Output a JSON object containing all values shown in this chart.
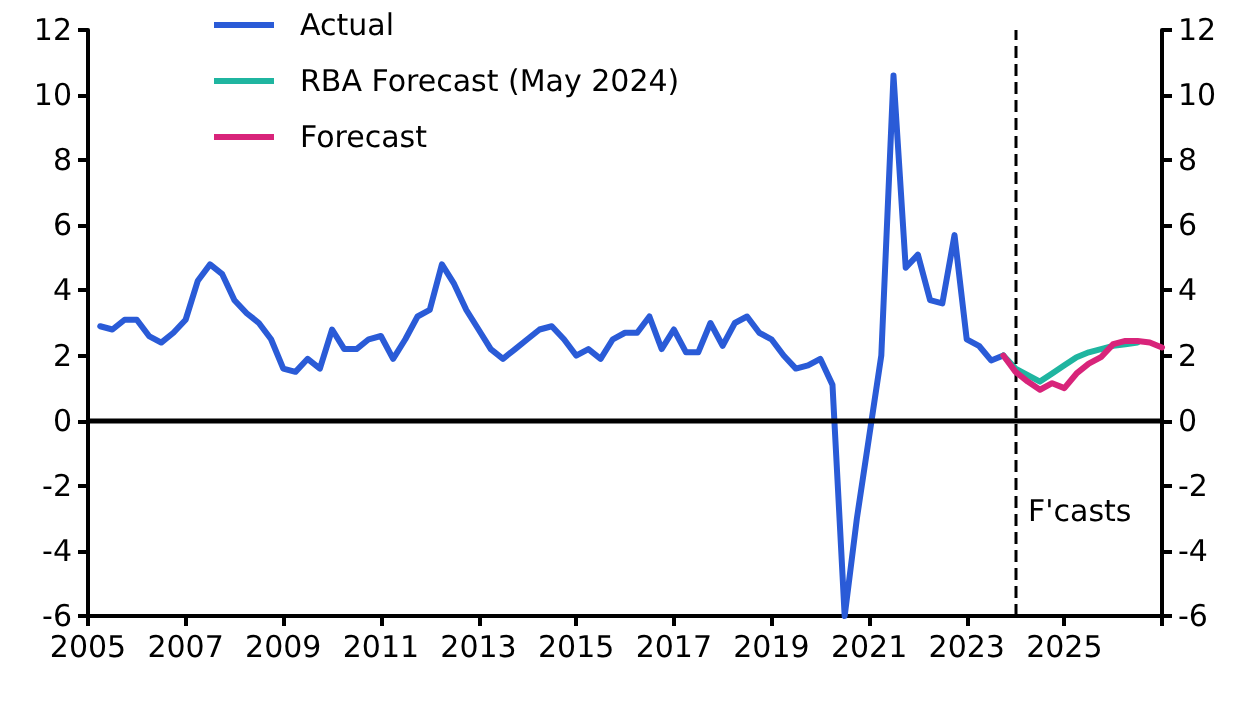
{
  "chart_data": {
    "type": "line",
    "xlim": [
      2005,
      2027
    ],
    "xticks": [
      2005,
      2007,
      2009,
      2011,
      2013,
      2015,
      2017,
      2019,
      2021,
      2023,
      2025,
      {
        "value": 2027,
        "label": null
      }
    ],
    "ylim": [
      -6,
      12
    ],
    "yticks": [
      -6,
      -4,
      -2,
      0,
      2,
      4,
      6,
      8,
      10,
      12
    ],
    "y2lim": [
      -6,
      12
    ],
    "y2ticks": [
      -6,
      -4,
      -2,
      0,
      2,
      4,
      6,
      8,
      10,
      12
    ],
    "grid": false,
    "legend": "top left",
    "marker": "none",
    "line_style": "solid",
    "series": [
      {
        "name": "Actual",
        "color": "#2a5bd7",
        "x": [
          2005.25,
          2005.5,
          2005.75,
          2006,
          2006.25,
          2006.5,
          2006.75,
          2007,
          2007.25,
          2007.5,
          2007.75,
          2008,
          2008.25,
          2008.5,
          2008.75,
          2009,
          2009.25,
          2009.5,
          2009.75,
          2010,
          2010.25,
          2010.5,
          2010.75,
          2011,
          2011.25,
          2011.5,
          2011.75,
          2012,
          2012.25,
          2012.5,
          2012.75,
          2013,
          2013.25,
          2013.5,
          2013.75,
          2014,
          2014.25,
          2014.5,
          2014.75,
          2015,
          2015.25,
          2015.5,
          2015.75,
          2016,
          2016.25,
          2016.5,
          2016.75,
          2017,
          2017.25,
          2017.5,
          2017.75,
          2018,
          2018.25,
          2018.5,
          2018.75,
          2019,
          2019.25,
          2019.5,
          2019.75,
          2020,
          2020.25,
          2020.5,
          2020.75,
          2021,
          2021.25,
          2021.5,
          2021.75,
          2022,
          2022.25,
          2022.5,
          2022.75,
          2023,
          2023.25,
          2023.5,
          2023.75
        ],
        "values": [
          2.9,
          2.8,
          3.1,
          3.1,
          2.6,
          2.4,
          2.7,
          3.1,
          4.3,
          4.8,
          4.5,
          3.7,
          3.3,
          3.0,
          2.5,
          1.6,
          1.5,
          1.9,
          1.6,
          2.8,
          2.2,
          2.2,
          2.5,
          2.6,
          1.9,
          2.5,
          3.2,
          3.4,
          4.8,
          4.2,
          3.4,
          2.8,
          2.2,
          1.9,
          2.2,
          2.5,
          2.8,
          2.9,
          2.5,
          2.0,
          2.2,
          1.9,
          2.5,
          2.7,
          2.7,
          3.2,
          2.2,
          2.8,
          2.1,
          2.1,
          3.0,
          2.3,
          3.0,
          3.2,
          2.7,
          2.5,
          2.0,
          1.6,
          1.7,
          1.9,
          1.1,
          -6.0,
          -3.0,
          -0.5,
          2.0,
          10.6,
          4.7,
          5.1,
          3.7,
          3.6,
          5.7,
          2.5,
          2.3,
          1.85,
          2.0
        ]
      },
      {
        "name": "RBA Forecast (May 2024)",
        "color": "#1fb5a0",
        "x": [
          2023.75,
          2024,
          2024.25,
          2024.5,
          2024.75,
          2025,
          2025.25,
          2025.5,
          2025.75,
          2026,
          2026.25,
          2026.5
        ],
        "values": [
          2.0,
          1.6,
          1.4,
          1.2,
          1.45,
          1.7,
          1.95,
          2.1,
          2.2,
          2.3,
          2.35,
          2.4
        ]
      },
      {
        "name": "Forecast",
        "color": "#d8247a",
        "x": [
          2023.75,
          2024,
          2024.25,
          2024.5,
          2024.75,
          2025,
          2025.25,
          2025.5,
          2025.75,
          2026,
          2026.25,
          2026.5,
          2026.75,
          2027
        ],
        "values": [
          2.0,
          1.5,
          1.2,
          0.95,
          1.15,
          1.0,
          1.45,
          1.75,
          1.95,
          2.35,
          2.45,
          2.45,
          2.4,
          2.25
        ]
      }
    ],
    "ref_lines": [
      {
        "axis": "y",
        "value": 0,
        "color": "#000000",
        "line_style": "solid"
      },
      {
        "axis": "x",
        "value": 2024,
        "color": "#000000",
        "line_style": "dashed"
      }
    ],
    "annotations": [
      "F'casts"
    ]
  }
}
